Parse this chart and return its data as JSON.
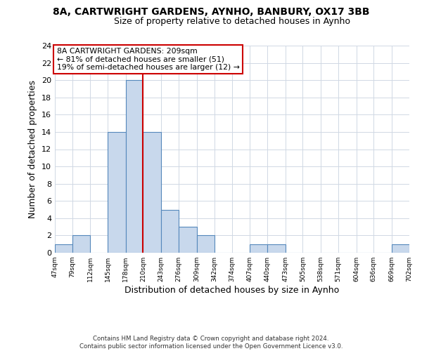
{
  "title": "8A, CARTWRIGHT GARDENS, AYNHO, BANBURY, OX17 3BB",
  "subtitle": "Size of property relative to detached houses in Aynho",
  "xlabel": "Distribution of detached houses by size in Aynho",
  "ylabel": "Number of detached properties",
  "bin_edges": [
    47,
    79,
    112,
    145,
    178,
    210,
    243,
    276,
    309,
    342,
    374,
    407,
    440,
    473,
    505,
    538,
    571,
    604,
    636,
    669,
    702
  ],
  "counts": [
    1,
    2,
    0,
    14,
    20,
    14,
    5,
    3,
    2,
    0,
    0,
    1,
    1,
    0,
    0,
    0,
    0,
    0,
    0,
    1
  ],
  "tick_labels": [
    "47sqm",
    "79sqm",
    "112sqm",
    "145sqm",
    "178sqm",
    "210sqm",
    "243sqm",
    "276sqm",
    "309sqm",
    "342sqm",
    "374sqm",
    "407sqm",
    "440sqm",
    "473sqm",
    "505sqm",
    "538sqm",
    "571sqm",
    "604sqm",
    "636sqm",
    "669sqm",
    "702sqm"
  ],
  "bar_color": "#c8d8ec",
  "bar_edge_color": "#5588bb",
  "reference_line_x": 210,
  "reference_line_color": "#cc0000",
  "ylim": [
    0,
    24
  ],
  "yticks": [
    0,
    2,
    4,
    6,
    8,
    10,
    12,
    14,
    16,
    18,
    20,
    22,
    24
  ],
  "annotation_title": "8A CARTWRIGHT GARDENS: 209sqm",
  "annotation_line1": "← 81% of detached houses are smaller (51)",
  "annotation_line2": "19% of semi-detached houses are larger (12) →",
  "annotation_box_color": "#ffffff",
  "annotation_box_edge_color": "#cc0000",
  "footer_line1": "Contains HM Land Registry data © Crown copyright and database right 2024.",
  "footer_line2": "Contains public sector information licensed under the Open Government Licence v3.0.",
  "background_color": "#ffffff",
  "grid_color": "#d0d8e4"
}
